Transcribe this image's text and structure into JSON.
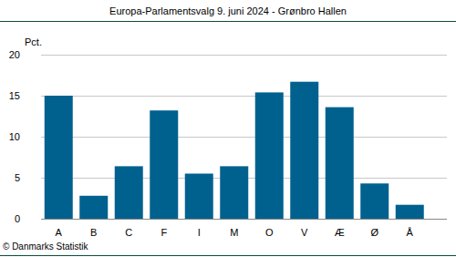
{
  "chart_data": {
    "type": "bar",
    "title": "Europa-Parlamentsvalg 9. juni 2024 - Grønbro Hallen",
    "y_label": "Pct.",
    "source": "© Danmarks Statistik",
    "categories": [
      "A",
      "B",
      "C",
      "F",
      "I",
      "M",
      "O",
      "V",
      "Æ",
      "Ø",
      "Å"
    ],
    "values": [
      15.0,
      2.8,
      6.4,
      13.2,
      5.5,
      6.4,
      15.4,
      16.7,
      13.6,
      4.3,
      1.7
    ],
    "color": "#00618f",
    "ylim": [
      0,
      20
    ],
    "yticks": [
      0,
      5,
      10,
      15,
      20
    ],
    "grid": true
  }
}
